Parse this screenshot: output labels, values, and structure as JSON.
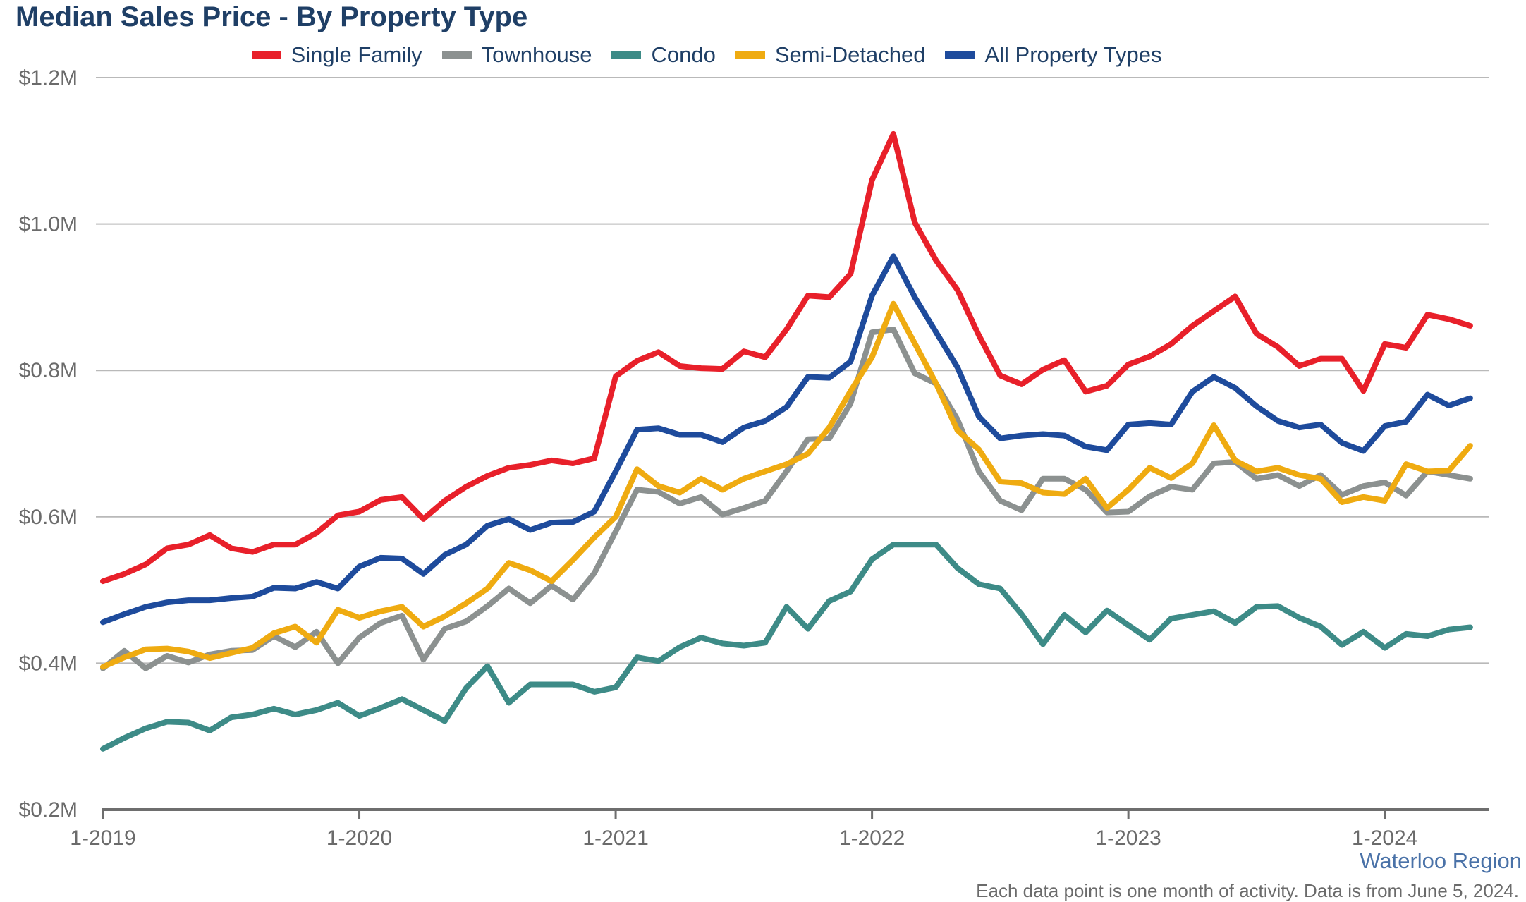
{
  "chart_data": {
    "type": "line",
    "title": "Median Sales Price - By Property Type",
    "xlabel": "",
    "ylabel": "",
    "ylim": [
      200000,
      1200000
    ],
    "y_ticks": [
      {
        "value": 200000,
        "label": "$0.2M"
      },
      {
        "value": 400000,
        "label": "$0.4M"
      },
      {
        "value": 600000,
        "label": "$0.6M"
      },
      {
        "value": 800000,
        "label": "$0.8M"
      },
      {
        "value": 1000000,
        "label": "$1.0M"
      },
      {
        "value": 1200000,
        "label": "$1.2M"
      }
    ],
    "x_ticks": [
      "1-2019",
      "1-2020",
      "1-2021",
      "1-2022",
      "1-2023",
      "1-2024"
    ],
    "x_start": "1-2019",
    "x_end": "5-2024",
    "grid": "horizontal",
    "legend_position": "top",
    "series": [
      {
        "name": "Single Family",
        "color": "#e8202a",
        "values": [
          512000,
          522000,
          535000,
          557000,
          562000,
          575000,
          557000,
          552000,
          562000,
          562000,
          578000,
          602000,
          607000,
          623000,
          627000,
          597000,
          622000,
          641000,
          656000,
          667000,
          671000,
          677000,
          673000,
          680000,
          792000,
          813000,
          825000,
          806000,
          803000,
          802000,
          826000,
          818000,
          856000,
          902000,
          900000,
          932000,
          1060000,
          1123000,
          1002000,
          950000,
          910000,
          848000,
          793000,
          781000,
          801000,
          814000,
          771000,
          779000,
          808000,
          819000,
          836000,
          861000,
          881000,
          901000,
          850000,
          832000,
          806000,
          816000,
          816000,
          772000,
          836000,
          831000,
          876000,
          870000,
          861000
        ]
      },
      {
        "name": "Townhouse",
        "color": "#8c9190",
        "values": [
          393000,
          417000,
          393000,
          410000,
          401000,
          412000,
          417000,
          418000,
          437000,
          422000,
          443000,
          400000,
          435000,
          455000,
          465000,
          405000,
          447000,
          457000,
          478000,
          502000,
          482000,
          506000,
          487000,
          523000,
          580000,
          637000,
          634000,
          618000,
          627000,
          603000,
          612000,
          622000,
          662000,
          706000,
          707000,
          755000,
          852000,
          856000,
          796000,
          782000,
          733000,
          662000,
          622000,
          609000,
          652000,
          652000,
          637000,
          606000,
          607000,
          628000,
          641000,
          637000,
          673000,
          675000,
          652000,
          657000,
          642000,
          657000,
          630000,
          642000,
          647000,
          629000,
          662000,
          657000,
          652000
        ]
      },
      {
        "name": "Condo",
        "color": "#3d8b87",
        "values": [
          283000,
          298000,
          311000,
          320000,
          319000,
          308000,
          326000,
          330000,
          338000,
          330000,
          336000,
          346000,
          328000,
          339000,
          351000,
          336000,
          321000,
          366000,
          396000,
          346000,
          371000,
          371000,
          371000,
          361000,
          367000,
          408000,
          403000,
          422000,
          435000,
          427000,
          424000,
          428000,
          477000,
          447000,
          485000,
          498000,
          542000,
          562000,
          562000,
          562000,
          530000,
          508000,
          502000,
          467000,
          426000,
          466000,
          442000,
          472000,
          452000,
          432000,
          461000,
          466000,
          471000,
          455000,
          477000,
          478000,
          462000,
          450000,
          425000,
          443000,
          421000,
          440000,
          437000,
          446000,
          449000
        ]
      },
      {
        "name": "Semi-Detached",
        "color": "#efab11",
        "values": [
          395000,
          408000,
          419000,
          420000,
          416000,
          407000,
          414000,
          421000,
          441000,
          450000,
          428000,
          473000,
          462000,
          471000,
          477000,
          450000,
          464000,
          482000,
          502000,
          537000,
          527000,
          512000,
          541000,
          572000,
          600000,
          665000,
          642000,
          633000,
          652000,
          637000,
          652000,
          662000,
          672000,
          686000,
          722000,
          772000,
          818000,
          891000,
          837000,
          782000,
          718000,
          692000,
          648000,
          646000,
          633000,
          631000,
          652000,
          612000,
          637000,
          667000,
          653000,
          673000,
          725000,
          677000,
          662000,
          667000,
          657000,
          652000,
          620000,
          627000,
          622000,
          672000,
          662000,
          663000,
          697000
        ]
      },
      {
        "name": "All Property Types",
        "color": "#1e4b9c",
        "values": [
          456000,
          467000,
          477000,
          483000,
          486000,
          486000,
          489000,
          491000,
          503000,
          502000,
          511000,
          502000,
          532000,
          544000,
          543000,
          522000,
          548000,
          562000,
          588000,
          597000,
          582000,
          592000,
          593000,
          607000,
          662000,
          719000,
          721000,
          712000,
          712000,
          702000,
          722000,
          731000,
          750000,
          791000,
          790000,
          812000,
          902000,
          956000,
          900000,
          852000,
          804000,
          737000,
          707000,
          711000,
          713000,
          711000,
          696000,
          691000,
          726000,
          728000,
          726000,
          771000,
          791000,
          776000,
          751000,
          731000,
          722000,
          726000,
          701000,
          690000,
          724000,
          730000,
          767000,
          752000,
          762000
        ]
      }
    ]
  },
  "footer": {
    "region": "Waterloo Region",
    "note": "Each data point is one month of activity. Data is from June 5, 2024."
  }
}
